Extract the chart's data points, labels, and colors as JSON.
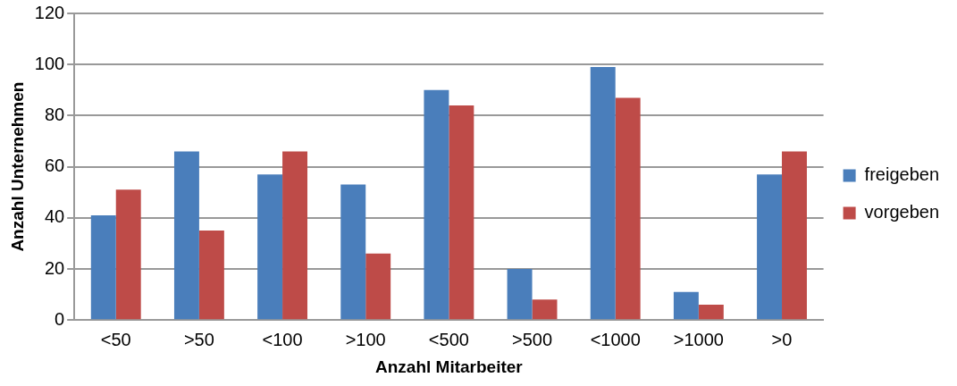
{
  "chart_data": {
    "type": "bar",
    "xlabel": "Anzahl Mitarbeiter",
    "ylabel": "Anzahl Unternehmen",
    "categories": [
      "<50",
      ">50",
      "<100",
      ">100",
      "<500",
      ">500",
      "<1000",
      ">1000",
      ">0"
    ],
    "series": [
      {
        "name": "freigeben",
        "color": "#4a7ebb",
        "values": [
          41,
          66,
          57,
          53,
          90,
          20,
          99,
          11,
          57
        ]
      },
      {
        "name": "vorgeben",
        "color": "#be4b48",
        "values": [
          51,
          35,
          66,
          26,
          84,
          8,
          87,
          6,
          66
        ]
      }
    ],
    "ylim": [
      0,
      120
    ],
    "yticks": [
      0,
      20,
      40,
      60,
      80,
      100,
      120
    ],
    "grid": "y",
    "legend": "right"
  }
}
